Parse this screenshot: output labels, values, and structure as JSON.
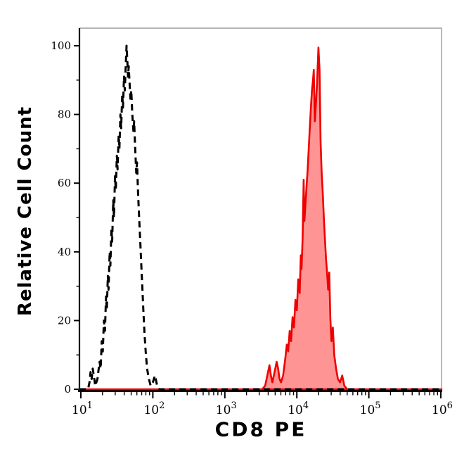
{
  "chart_data": {
    "type": "area",
    "title": "",
    "xlabel": "CD8 PE",
    "ylabel": "Relative Cell Count",
    "x_scale": "log10",
    "x_range_log10": [
      0.98,
      6.01
    ],
    "ylim": [
      0,
      105
    ],
    "grid": false,
    "legend": "none",
    "x_tick_base": "10",
    "x_tick_exponents": [
      "1",
      "2",
      "3",
      "4",
      "5",
      "6"
    ],
    "y_tick_labels": [
      "0",
      "20",
      "40",
      "60",
      "80",
      "100"
    ],
    "y_tick_values": [
      0,
      20,
      40,
      60,
      80,
      100
    ],
    "y_minor_tick_values": [
      10,
      30,
      50,
      70,
      90
    ],
    "colors": {
      "control_line": "#000000",
      "stain_line": "#ee0000",
      "stain_fill": "rgba(255,0,0,0.42)",
      "spine_main": "#000000",
      "spine_secondary": "#888888",
      "background": "#ffffff"
    },
    "series": [
      {
        "name": "black-dashed-control",
        "line_style": "dashed",
        "fill": false,
        "points_log10x_y": [
          [
            0.98,
            0
          ],
          [
            1.1,
            0
          ],
          [
            1.12,
            2
          ],
          [
            1.135,
            5
          ],
          [
            1.15,
            3
          ],
          [
            1.165,
            6
          ],
          [
            1.18,
            4
          ],
          [
            1.2,
            1
          ],
          [
            1.23,
            3
          ],
          [
            1.26,
            8
          ],
          [
            1.275,
            6
          ],
          [
            1.29,
            14
          ],
          [
            1.305,
            11
          ],
          [
            1.32,
            20
          ],
          [
            1.335,
            17
          ],
          [
            1.35,
            27
          ],
          [
            1.36,
            23
          ],
          [
            1.375,
            33
          ],
          [
            1.385,
            29
          ],
          [
            1.4,
            40
          ],
          [
            1.41,
            36
          ],
          [
            1.425,
            47
          ],
          [
            1.435,
            43
          ],
          [
            1.45,
            55
          ],
          [
            1.46,
            50
          ],
          [
            1.475,
            62
          ],
          [
            1.485,
            58
          ],
          [
            1.5,
            68
          ],
          [
            1.51,
            64
          ],
          [
            1.525,
            74
          ],
          [
            1.535,
            70
          ],
          [
            1.55,
            80
          ],
          [
            1.56,
            76
          ],
          [
            1.575,
            86
          ],
          [
            1.585,
            82
          ],
          [
            1.6,
            91
          ],
          [
            1.61,
            87
          ],
          [
            1.625,
            95
          ],
          [
            1.635,
            100
          ],
          [
            1.645,
            96
          ],
          [
            1.655,
            91
          ],
          [
            1.665,
            94
          ],
          [
            1.68,
            88
          ],
          [
            1.69,
            84
          ],
          [
            1.7,
            87
          ],
          [
            1.715,
            80
          ],
          [
            1.73,
            75
          ],
          [
            1.74,
            78
          ],
          [
            1.755,
            70
          ],
          [
            1.77,
            63
          ],
          [
            1.78,
            66
          ],
          [
            1.795,
            57
          ],
          [
            1.81,
            50
          ],
          [
            1.825,
            43
          ],
          [
            1.84,
            36
          ],
          [
            1.855,
            29
          ],
          [
            1.87,
            22
          ],
          [
            1.885,
            16
          ],
          [
            1.9,
            11
          ],
          [
            1.92,
            6
          ],
          [
            1.945,
            3
          ],
          [
            1.97,
            1
          ],
          [
            2.0,
            2
          ],
          [
            2.03,
            4
          ],
          [
            2.06,
            1
          ],
          [
            2.09,
            0
          ],
          [
            2.5,
            0
          ],
          [
            6.01,
            0
          ]
        ]
      },
      {
        "name": "red-filled-cd8-pe",
        "line_style": "solid",
        "fill": true,
        "points_log10x_y": [
          [
            0.98,
            0
          ],
          [
            3.52,
            0
          ],
          [
            3.56,
            1
          ],
          [
            3.6,
            5
          ],
          [
            3.62,
            7
          ],
          [
            3.64,
            4
          ],
          [
            3.66,
            2
          ],
          [
            3.69,
            5
          ],
          [
            3.72,
            8
          ],
          [
            3.74,
            6
          ],
          [
            3.76,
            3
          ],
          [
            3.78,
            2
          ],
          [
            3.81,
            4
          ],
          [
            3.84,
            9
          ],
          [
            3.86,
            13
          ],
          [
            3.88,
            11
          ],
          [
            3.9,
            17
          ],
          [
            3.92,
            14
          ],
          [
            3.94,
            21
          ],
          [
            3.96,
            18
          ],
          [
            3.98,
            26
          ],
          [
            4.0,
            23
          ],
          [
            4.02,
            32
          ],
          [
            4.04,
            28
          ],
          [
            4.055,
            39
          ],
          [
            4.065,
            35
          ],
          [
            4.08,
            44
          ],
          [
            4.095,
            61
          ],
          [
            4.105,
            49
          ],
          [
            4.12,
            54
          ],
          [
            4.135,
            59
          ],
          [
            4.15,
            64
          ],
          [
            4.165,
            70
          ],
          [
            4.18,
            76
          ],
          [
            4.195,
            82
          ],
          [
            4.21,
            87
          ],
          [
            4.225,
            90
          ],
          [
            4.235,
            93
          ],
          [
            4.25,
            78
          ],
          [
            4.265,
            83
          ],
          [
            4.28,
            89
          ],
          [
            4.3,
            99.5
          ],
          [
            4.315,
            93
          ],
          [
            4.33,
            72
          ],
          [
            4.345,
            63
          ],
          [
            4.36,
            57
          ],
          [
            4.375,
            50
          ],
          [
            4.39,
            44
          ],
          [
            4.405,
            38
          ],
          [
            4.42,
            34
          ],
          [
            4.435,
            29
          ],
          [
            4.45,
            34
          ],
          [
            4.465,
            21
          ],
          [
            4.48,
            14
          ],
          [
            4.5,
            18
          ],
          [
            4.52,
            10
          ],
          [
            4.545,
            6
          ],
          [
            4.57,
            3
          ],
          [
            4.6,
            2
          ],
          [
            4.63,
            4
          ],
          [
            4.66,
            1
          ],
          [
            4.7,
            0
          ],
          [
            5.0,
            0
          ],
          [
            6.01,
            0
          ]
        ]
      }
    ]
  }
}
